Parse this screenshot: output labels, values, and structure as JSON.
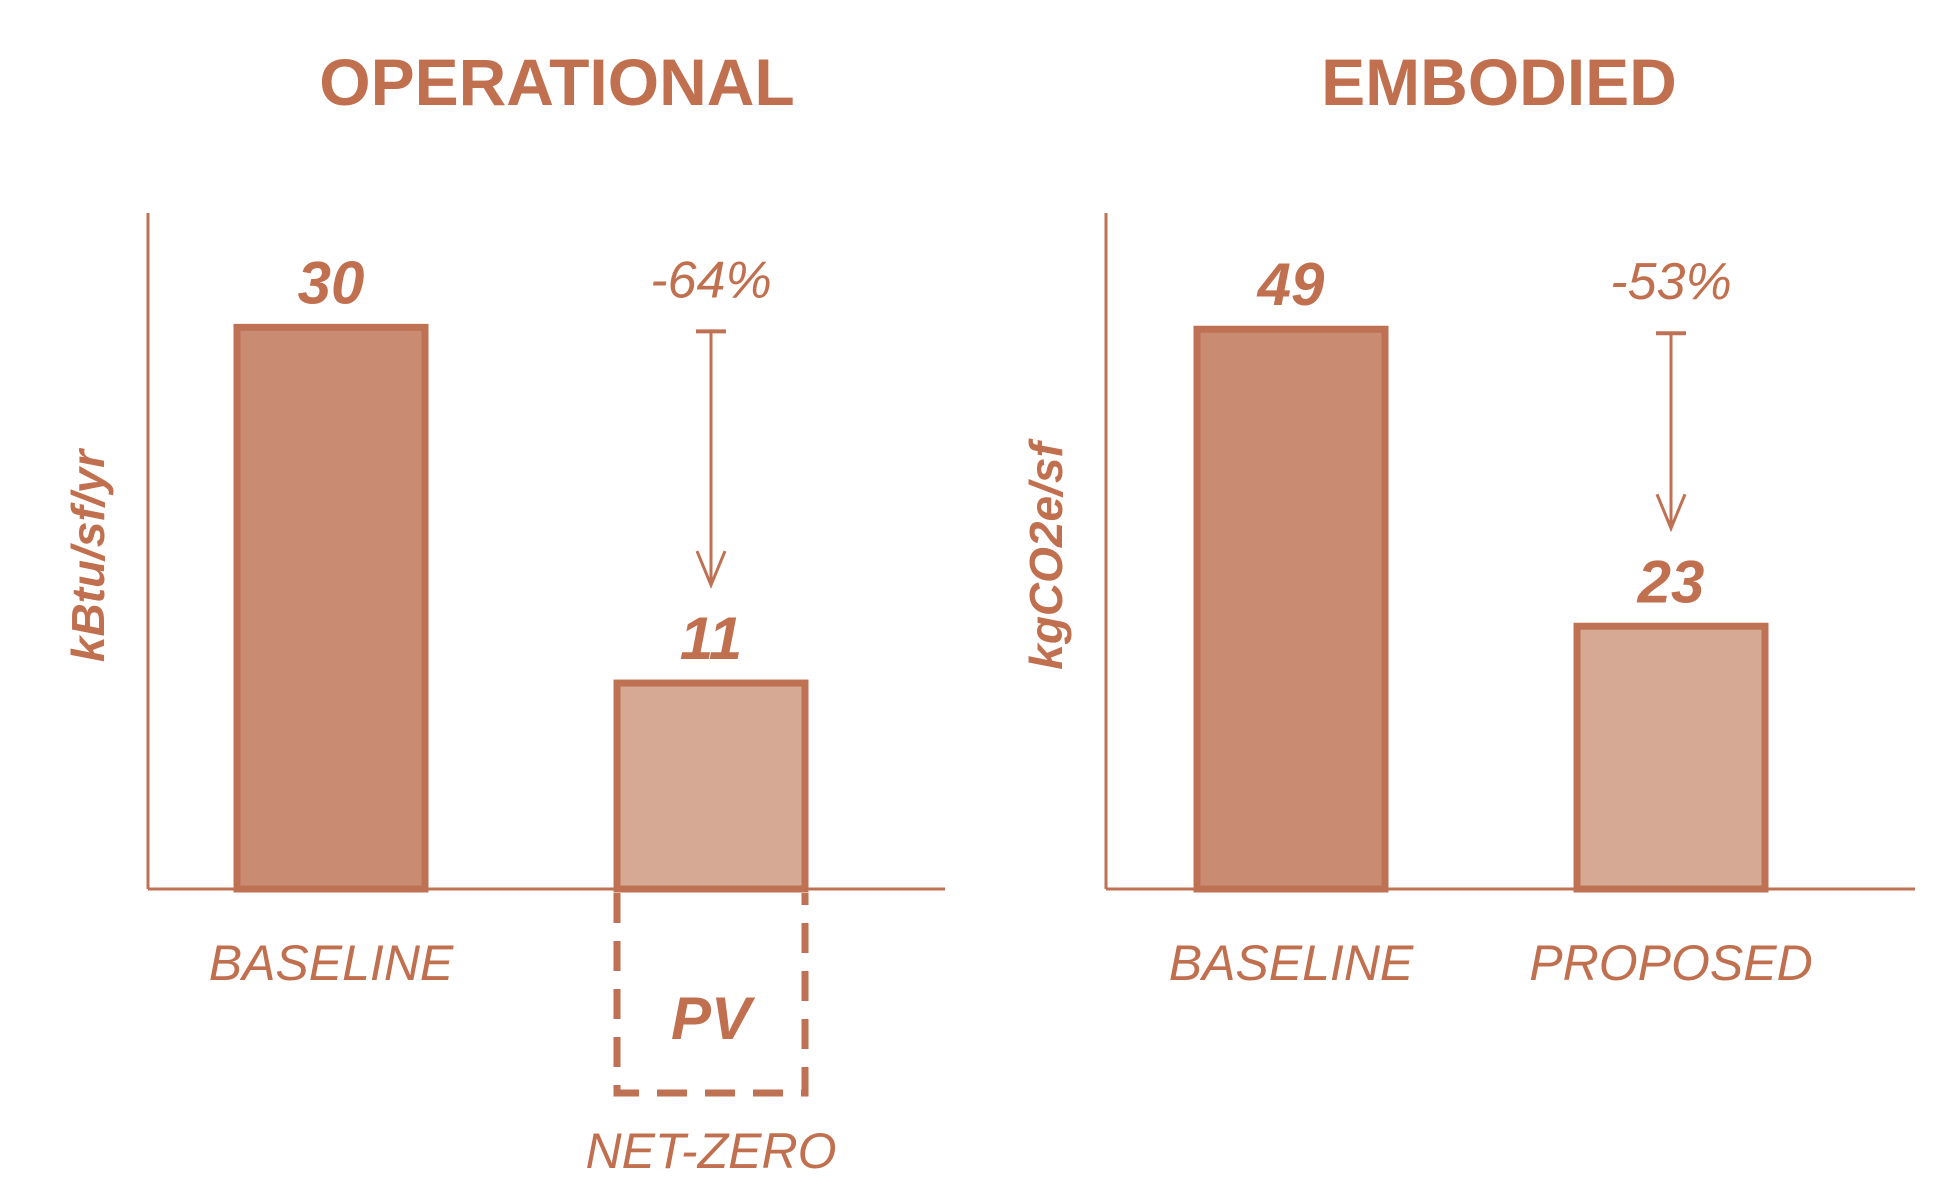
{
  "colors": {
    "accent": "#c0704f",
    "baseline_fill": "#c98b72",
    "proposed_fill": "#d6a995",
    "stroke": "#bf7253"
  },
  "chart_data": [
    {
      "type": "bar",
      "title": "OPERATIONAL",
      "ylabel": "kBtu/sf/yr",
      "categories": [
        "BASELINE",
        ""
      ],
      "values": [
        30,
        11
      ],
      "value_labels": [
        "30",
        "11"
      ],
      "reduction_label": "-64%",
      "ylim": [
        0,
        36
      ],
      "grid": false,
      "offset_box": {
        "label": "PV",
        "caption": "NET-ZERO"
      }
    },
    {
      "type": "bar",
      "title": "EMBODIED",
      "ylabel": "kgCO2e/sf",
      "categories": [
        "BASELINE",
        "PROPOSED"
      ],
      "values": [
        49,
        23
      ],
      "value_labels": [
        "49",
        "23"
      ],
      "reduction_label": "-53%",
      "ylim": [
        0,
        59
      ],
      "grid": false
    }
  ]
}
